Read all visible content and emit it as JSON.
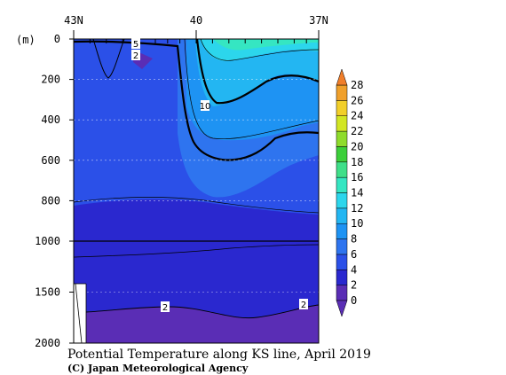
{
  "chart_data": {
    "type": "heatmap",
    "title": "Potential Temperature along KS line, April 2019",
    "credit": "(C) Japan Meteorological Agency",
    "x_axis": {
      "direction": "north-to-south",
      "tick_labels": [
        "43N",
        "40",
        "37N"
      ],
      "range": [
        "43N",
        "37N"
      ]
    },
    "y_axis": {
      "unit_label": "(m)",
      "tick_values": [
        0,
        200,
        400,
        600,
        800,
        1000,
        1500,
        2000
      ],
      "upper_panel_range": [
        0,
        1000
      ],
      "lower_panel_range": [
        1000,
        2000
      ],
      "inverted": true,
      "grid": "dashed"
    },
    "colorbar": {
      "tick_labels": [
        "0",
        "2",
        "4",
        "6",
        "8",
        "10",
        "12",
        "14",
        "16",
        "18",
        "20",
        "22",
        "24",
        "26",
        "28"
      ],
      "levels": [
        0,
        2,
        4,
        6,
        8,
        10,
        12,
        14,
        16,
        18,
        20,
        22,
        24,
        26,
        28
      ],
      "colors": [
        "#5a2db5",
        "#2a28cf",
        "#2b50e8",
        "#2e74ef",
        "#1e93f3",
        "#23b6f2",
        "#2cd6ec",
        "#35e6c2",
        "#3fdf89",
        "#3ccf3a",
        "#8fdc2c",
        "#d2e624",
        "#f2cf2a",
        "#f0a02b",
        "#f07e2a"
      ],
      "extends": "both"
    },
    "contour_labels": [
      "5",
      "2",
      "10",
      "2",
      "2"
    ]
  }
}
